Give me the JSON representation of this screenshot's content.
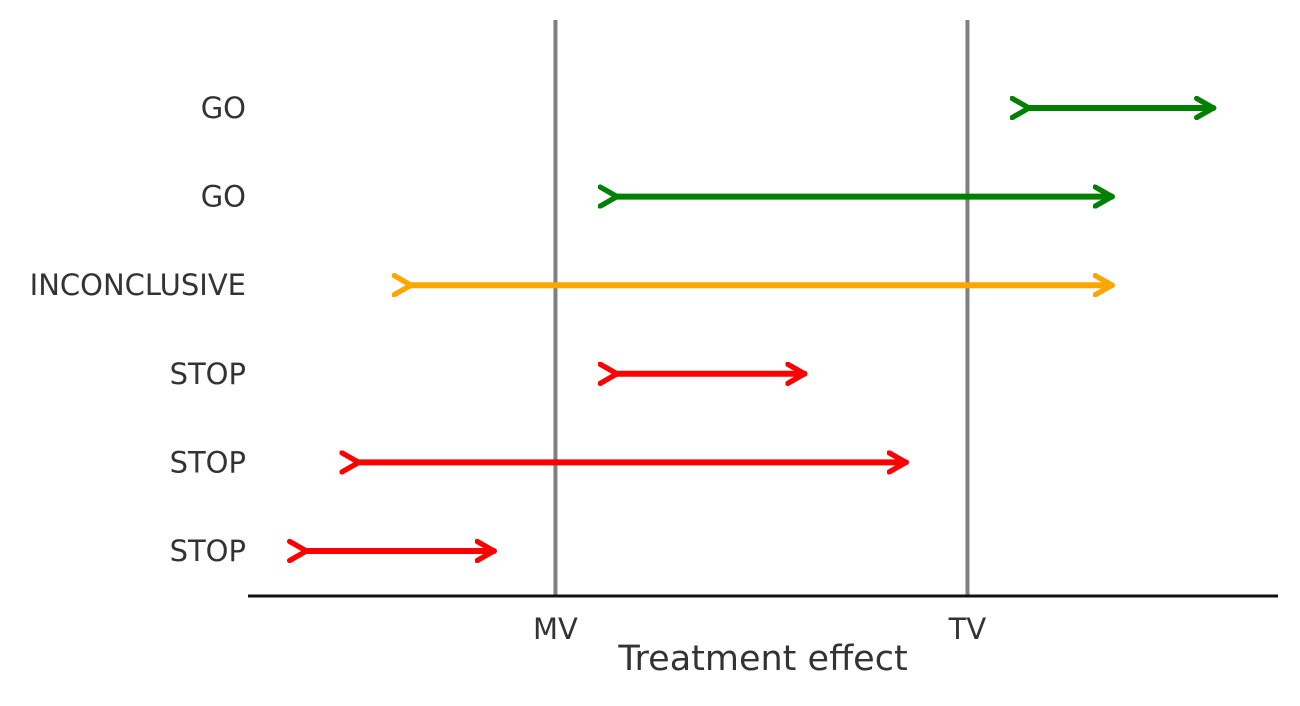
{
  "chart_data": {
    "type": "interval",
    "xlabel": "Treatment effect",
    "xlim": [
      -1.0,
      2.35
    ],
    "xticks": [
      {
        "label": "MV",
        "value": 0
      },
      {
        "label": "TV",
        "value": 1.34
      }
    ],
    "reference_lines": [
      {
        "label": "MV",
        "value": 0,
        "color": "#808080"
      },
      {
        "label": "TV",
        "value": 1.34,
        "color": "#808080"
      }
    ],
    "intervals": [
      {
        "label": "GO",
        "low": 1.54,
        "high": 2.14,
        "color": "#008000"
      },
      {
        "label": "GO",
        "low": 0.2,
        "high": 1.81,
        "color": "#008000"
      },
      {
        "label": "INCONCLUSIVE",
        "low": -0.47,
        "high": 1.81,
        "color": "#FFA500"
      },
      {
        "label": "STOP",
        "low": 0.2,
        "high": 0.81,
        "color": "#FF0000"
      },
      {
        "label": "STOP",
        "low": -0.64,
        "high": 1.14,
        "color": "#FF0000"
      },
      {
        "label": "STOP",
        "low": -0.81,
        "high": -0.2,
        "color": "#FF0000"
      }
    ],
    "grid": false,
    "legend": "none"
  }
}
